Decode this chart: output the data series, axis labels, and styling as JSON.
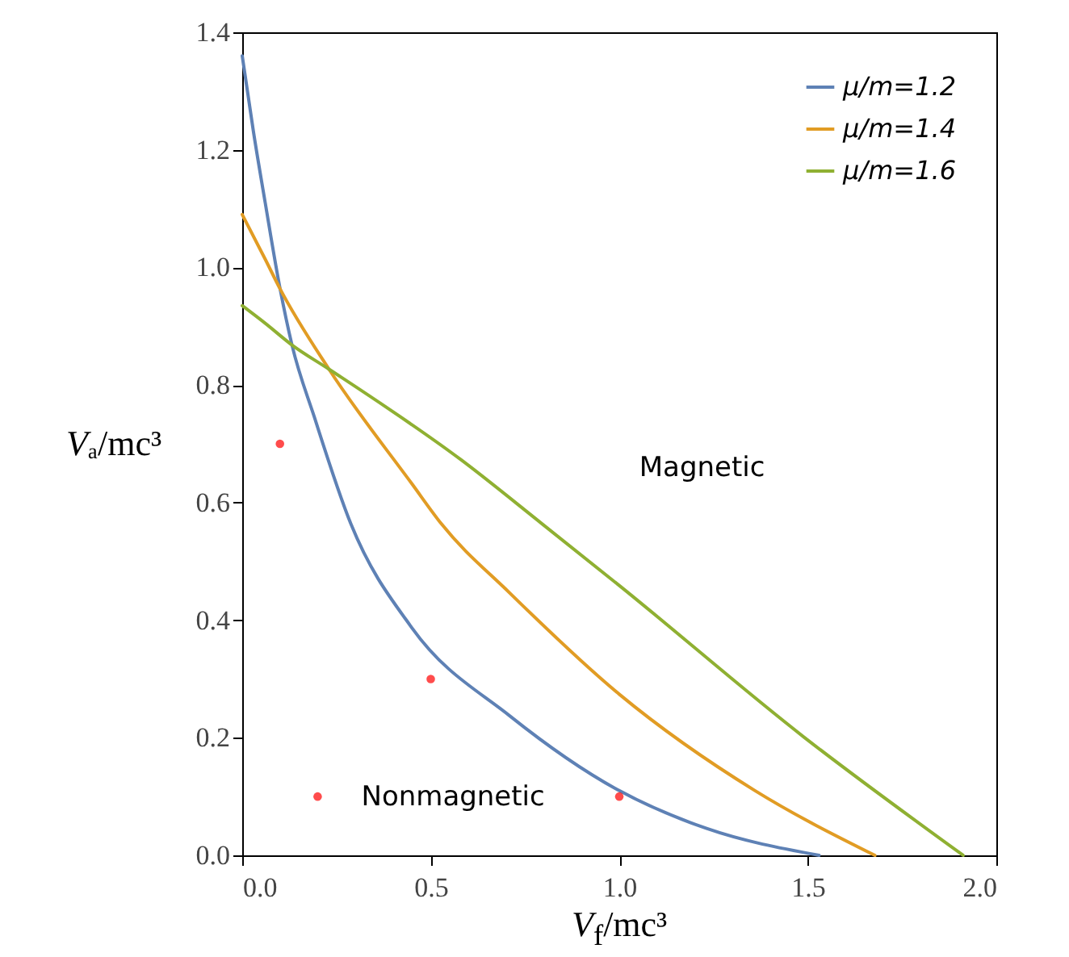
{
  "chart_data": {
    "type": "line",
    "xlabel": "V$_{f}$/mc³",
    "ylabel": "Vₐ/mc³",
    "xlim": [
      0,
      2
    ],
    "ylim": [
      0,
      1.4
    ],
    "xticks": [
      {
        "value": 0,
        "label": "0.0"
      },
      0.5,
      {
        "value": 1,
        "label": "1.0"
      },
      1.5,
      {
        "value": 2,
        "label": "2.0"
      }
    ],
    "yticks": [
      {
        "value": 0,
        "label": "0.0"
      },
      0.2,
      0.4,
      0.6,
      0.8,
      {
        "value": 1,
        "label": "1.0"
      },
      1.2,
      1.4
    ],
    "grid": false,
    "legend": "top right",
    "series": [
      {
        "name": "μ/m=1.2",
        "color": "#5e81b5",
        "x": [
          0,
          0.03,
          0.061,
          0.1,
          0.132,
          0.191,
          0.288,
          0.45,
          0.71,
          1.0,
          1.23,
          1.53
        ],
        "values": [
          1.36,
          1.23,
          1.11,
          0.965,
          0.868,
          0.746,
          0.564,
          0.387,
          0.237,
          0.11,
          0.046,
          0
        ]
      },
      {
        "name": "μ/m=1.4",
        "color": "#e19c24",
        "x": [
          0,
          0.061,
          0.1,
          0.23,
          0.45,
          0.528,
          0.71,
          1.0,
          1.36,
          1.678
        ],
        "values": [
          1.09,
          1.014,
          0.964,
          0.827,
          0.632,
          0.564,
          0.446,
          0.274,
          0.11,
          0
        ]
      },
      {
        "name": "μ/m=1.6",
        "color": "#8fb032",
        "x": [
          0,
          0.061,
          0.132,
          0.23,
          0.58,
          0.795,
          1.0,
          1.49,
          1.912
        ],
        "values": [
          0.935,
          0.905,
          0.868,
          0.827,
          0.673,
          0.564,
          0.459,
          0.201,
          0
        ]
      },
      {
        "type": "scatter",
        "color": "#ff0000",
        "x": [
          0.1,
          0.2,
          0.5,
          1.0
        ],
        "values": [
          0.7,
          0.1,
          0.3,
          0.1
        ]
      }
    ],
    "annotations": [
      "Magnetic",
      "Nonmagnetic"
    ]
  }
}
